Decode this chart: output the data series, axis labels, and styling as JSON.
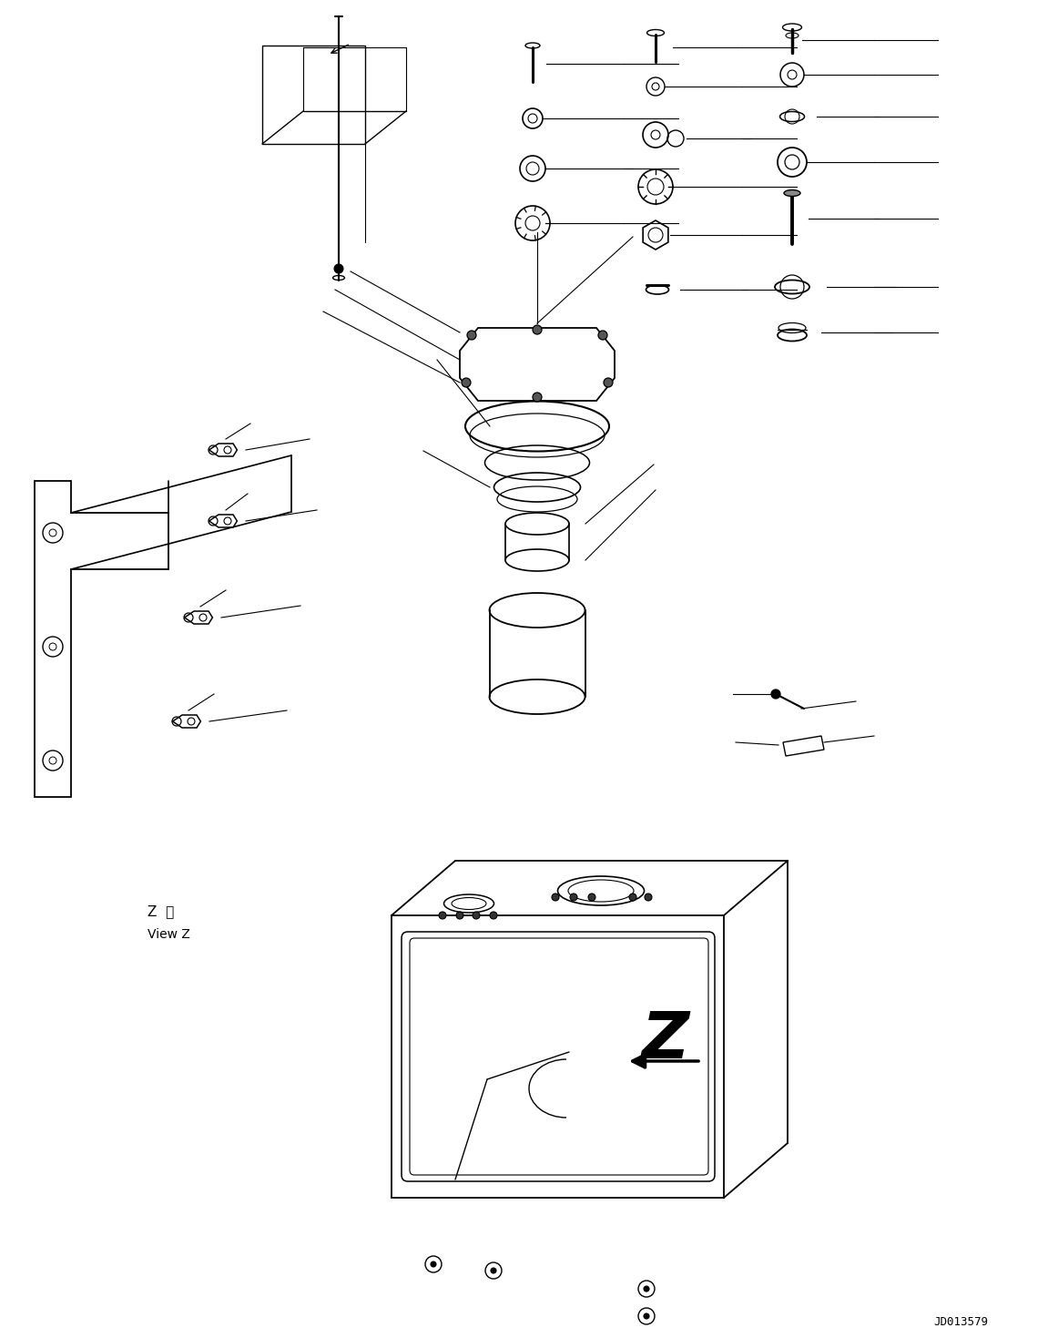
{
  "bg_color": "#ffffff",
  "line_color": "#000000",
  "fig_width": 11.51,
  "fig_height": 14.69,
  "document_id": "JD013579",
  "view_label_jp": "Z  視",
  "view_label_en": "View Z",
  "arrow_Z_label": "Z"
}
